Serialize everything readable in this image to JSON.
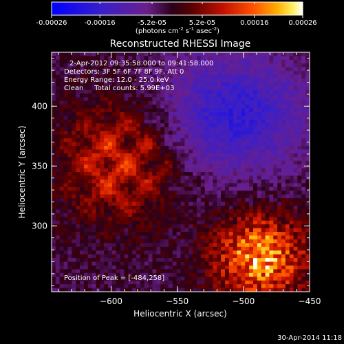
{
  "colorbar": {
    "ticks": [
      "-0.00026",
      "-0.00016",
      "-5.2e-05",
      "5.2e-05",
      "0.00016",
      "0.00026"
    ],
    "unit_main": "(photons cm",
    "unit_exp1": "-2",
    "unit_mid": " s",
    "unit_exp2": "-1",
    "unit_end": " asec",
    "unit_exp3": "-2",
    "unit_close": ")"
  },
  "image": {
    "title": "Reconstructed RHESSI Image",
    "annotations": [
      "2-Apr-2012 09:35:58.000 to 09:41:58.000",
      "Detectors: 3F 5F 6F 7F 8F 9F, Att 0",
      "Energy Range: 12.0 - 25.0 keV",
      "Clean     Total counts: 5.99E+03"
    ],
    "peak_text": "Position of Peak = [-484,258]"
  },
  "chart_data": {
    "type": "heatmap",
    "title": "Reconstructed RHESSI Image",
    "xlabel": "Heliocentric X (arcsec)",
    "ylabel": "Heliocentric Y (arcsec)",
    "xlim": [
      -645,
      -450
    ],
    "ylim": [
      245,
      445
    ],
    "xticks": [
      -600,
      -550,
      -500,
      -450
    ],
    "yticks": [
      300,
      350,
      400
    ],
    "xtick_labels": [
      "−600",
      "−550",
      "−500",
      "−450"
    ],
    "ytick_labels": [
      "300",
      "350",
      "400"
    ],
    "colorscale_range": [
      -0.00026,
      0.00026
    ],
    "peak_position": [
      -484,
      258
    ]
  },
  "footer": {
    "timestamp": "30-Apr-2014 11:18"
  }
}
